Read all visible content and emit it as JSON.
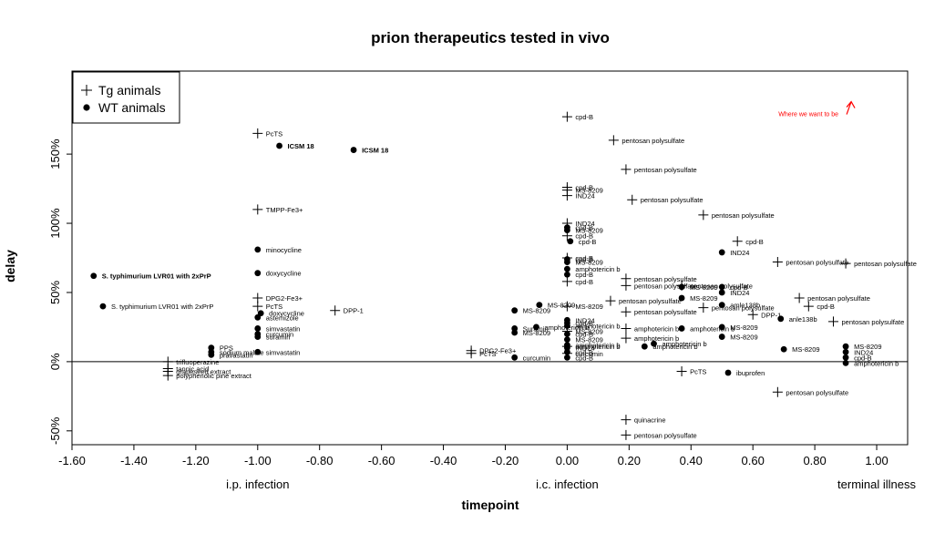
{
  "chart_data": {
    "type": "scatter",
    "title": "prion therapeutics tested in vivo",
    "xlabel": "timepoint",
    "ylabel": "delay",
    "xlim": [
      -1.6,
      1.1
    ],
    "ylim": [
      -0.6,
      2.1
    ],
    "x_ticks": [
      {
        "value": -1.6,
        "label": "-1.60"
      },
      {
        "value": -1.4,
        "label": "-1.40"
      },
      {
        "value": -1.2,
        "label": "-1.20"
      },
      {
        "value": -1.0,
        "label": "-1.00"
      },
      {
        "value": -0.8,
        "label": "-0.80"
      },
      {
        "value": -0.6,
        "label": "-0.60"
      },
      {
        "value": -0.4,
        "label": "-0.40"
      },
      {
        "value": -0.2,
        "label": "-0.20"
      },
      {
        "value": 0.0,
        "label": "0.00"
      },
      {
        "value": 0.2,
        "label": "0.20"
      },
      {
        "value": 0.4,
        "label": "0.40"
      },
      {
        "value": 0.6,
        "label": "0.60"
      },
      {
        "value": 0.8,
        "label": "0.80"
      },
      {
        "value": 1.0,
        "label": "1.00"
      }
    ],
    "y_ticks": [
      {
        "value": -0.5,
        "label": "-50%"
      },
      {
        "value": 0.0,
        "label": "0%"
      },
      {
        "value": 0.5,
        "label": "50%"
      },
      {
        "value": 1.0,
        "label": "100%"
      },
      {
        "value": 1.5,
        "label": "150%"
      }
    ],
    "x_annotations": [
      {
        "x": -1.0,
        "text": "i.p. infection"
      },
      {
        "x": 0.0,
        "text": "i.c. infection"
      },
      {
        "x": 1.0,
        "text": "terminal illness"
      }
    ],
    "reference_line_y": 0,
    "legend": {
      "position": "top-left",
      "entries": [
        {
          "symbol": "plus",
          "label": "Tg animals"
        },
        {
          "symbol": "dot",
          "label": "WT animals"
        }
      ]
    },
    "arrow_annotation": {
      "text": "Where we want to be",
      "color": "#ff0000",
      "x": 0.9,
      "y": 1.8
    },
    "series": [
      {
        "name": "Tg animals",
        "symbol": "plus",
        "points": [
          {
            "x": -1.0,
            "y": 1.65,
            "label": "PcTS"
          },
          {
            "x": -1.0,
            "y": 1.1,
            "label": "TMPP-Fe3+"
          },
          {
            "x": -1.0,
            "y": 0.46,
            "label": "DPG2-Fe3+"
          },
          {
            "x": -1.0,
            "y": 0.4,
            "label": "PcTS"
          },
          {
            "x": -0.75,
            "y": 0.37,
            "label": "DPP-1"
          },
          {
            "x": -1.29,
            "y": 0.0,
            "label": "trifluoperazine"
          },
          {
            "x": -1.29,
            "y": -0.05,
            "label": "tannic acid"
          },
          {
            "x": -1.29,
            "y": -0.07,
            "label": "grapeseed extract"
          },
          {
            "x": -1.29,
            "y": -0.1,
            "label": "polyphenolic pine extract"
          },
          {
            "x": -0.31,
            "y": 0.08,
            "label": "DPG2-Fe3+"
          },
          {
            "x": -0.31,
            "y": 0.06,
            "label": "PcTS"
          },
          {
            "x": 0.0,
            "y": 1.77,
            "label": "cpd-B"
          },
          {
            "x": 0.0,
            "y": 1.26,
            "label": "cpd-B"
          },
          {
            "x": 0.0,
            "y": 1.24,
            "label": "MS-8209"
          },
          {
            "x": 0.0,
            "y": 1.2,
            "label": "IND24"
          },
          {
            "x": 0.0,
            "y": 1.0,
            "label": "IND24"
          },
          {
            "x": 0.0,
            "y": 0.91,
            "label": "cpd-B"
          },
          {
            "x": 0.0,
            "y": 0.75,
            "label": "cpd-B"
          },
          {
            "x": 0.0,
            "y": 0.58,
            "label": "cpd-B"
          },
          {
            "x": 0.0,
            "y": 0.4,
            "label": "MS-8209"
          },
          {
            "x": 0.0,
            "y": 0.22,
            "label": "MS-8209"
          },
          {
            "x": 0.0,
            "y": 0.11,
            "label": "amphotericin b"
          },
          {
            "x": 0.0,
            "y": 0.06,
            "label": "curcumin"
          },
          {
            "x": 0.14,
            "y": 0.44,
            "label": "pentosan polysulfate"
          },
          {
            "x": 0.15,
            "y": 1.6,
            "label": "pentosan polysulfate"
          },
          {
            "x": 0.19,
            "y": 1.39,
            "label": "pentosan polysulfate"
          },
          {
            "x": 0.21,
            "y": 1.17,
            "label": "pentosan polysulfate"
          },
          {
            "x": 0.19,
            "y": 0.6,
            "label": "pentosan polysulfate"
          },
          {
            "x": 0.19,
            "y": 0.55,
            "label": "pentosan polysulfate"
          },
          {
            "x": 0.19,
            "y": 0.36,
            "label": "pentosan polysulfate"
          },
          {
            "x": 0.19,
            "y": 0.24,
            "label": "amphotericin b"
          },
          {
            "x": 0.19,
            "y": 0.17,
            "label": "amphotericin b"
          },
          {
            "x": 0.19,
            "y": -0.42,
            "label": "quinacrine"
          },
          {
            "x": 0.19,
            "y": -0.53,
            "label": "pentosan polysulfate"
          },
          {
            "x": 0.37,
            "y": 0.55,
            "label": "pentosan polysulfate"
          },
          {
            "x": 0.37,
            "y": -0.07,
            "label": "PcTS"
          },
          {
            "x": 0.44,
            "y": 1.06,
            "label": "pentosan polysulfate"
          },
          {
            "x": 0.44,
            "y": 0.39,
            "label": "pentosan polysulfate"
          },
          {
            "x": 0.55,
            "y": 0.87,
            "label": "cpd-B"
          },
          {
            "x": 0.6,
            "y": 0.34,
            "label": "DPP-1"
          },
          {
            "x": 0.68,
            "y": 0.72,
            "label": "pentosan polysulfate"
          },
          {
            "x": 0.68,
            "y": -0.22,
            "label": "pentosan polysulfate"
          },
          {
            "x": 0.75,
            "y": 0.46,
            "label": "pentosan polysulfate"
          },
          {
            "x": 0.78,
            "y": 0.4,
            "label": "cpd-B"
          },
          {
            "x": 0.86,
            "y": 0.29,
            "label": "pentosan polysulfate"
          },
          {
            "x": 0.9,
            "y": 0.71,
            "label": "pentosan polysulfate"
          }
        ]
      },
      {
        "name": "WT animals",
        "symbol": "dot",
        "points": [
          {
            "x": -0.93,
            "y": 1.56,
            "label": "ICSM 18",
            "bold": true
          },
          {
            "x": -0.69,
            "y": 1.53,
            "label": "ICSM 18",
            "bold": true
          },
          {
            "x": -1.0,
            "y": 0.81,
            "label": "minocycline"
          },
          {
            "x": -1.0,
            "y": 0.64,
            "label": "doxycycline"
          },
          {
            "x": -1.53,
            "y": 0.62,
            "label": "S. typhimurium LVR01 with 2xPrP",
            "bold": true
          },
          {
            "x": -1.5,
            "y": 0.4,
            "label": "S. typhimurium LVR01 with 2xPrP"
          },
          {
            "x": -0.99,
            "y": 0.35,
            "label": "doxycycline"
          },
          {
            "x": -1.0,
            "y": 0.32,
            "label": "astemizole"
          },
          {
            "x": -1.0,
            "y": 0.24,
            "label": "simvastatin"
          },
          {
            "x": -1.0,
            "y": 0.2,
            "label": "curcumin"
          },
          {
            "x": -1.0,
            "y": 0.18,
            "label": "suramin"
          },
          {
            "x": -1.15,
            "y": 0.1,
            "label": "PPS"
          },
          {
            "x": -1.15,
            "y": 0.07,
            "label": "sodium malate"
          },
          {
            "x": -1.15,
            "y": 0.05,
            "label": "pravastatin"
          },
          {
            "x": -1.0,
            "y": 0.07,
            "label": "simvastatin"
          },
          {
            "x": -0.17,
            "y": 0.37,
            "label": "MS-8209"
          },
          {
            "x": -0.17,
            "y": 0.24,
            "label": "Suramin"
          },
          {
            "x": -0.17,
            "y": 0.21,
            "label": "MS-8209"
          },
          {
            "x": -0.09,
            "y": 0.41,
            "label": "MS-8209"
          },
          {
            "x": -0.1,
            "y": 0.25,
            "label": "amphotericin b"
          },
          {
            "x": -0.17,
            "y": 0.03,
            "label": "curcumin"
          },
          {
            "x": 0.0,
            "y": 0.97,
            "label": "cpd-B"
          },
          {
            "x": 0.0,
            "y": 0.95,
            "label": "MS-8209"
          },
          {
            "x": 0.01,
            "y": 0.87,
            "label": "cpd-B"
          },
          {
            "x": 0.0,
            "y": 0.74,
            "label": "cpd-B"
          },
          {
            "x": 0.0,
            "y": 0.72,
            "label": "MS-8209"
          },
          {
            "x": 0.0,
            "y": 0.67,
            "label": "amphotericin b"
          },
          {
            "x": 0.0,
            "y": 0.63,
            "label": "cpd-B"
          },
          {
            "x": 0.0,
            "y": 0.3,
            "label": "IND24"
          },
          {
            "x": 0.0,
            "y": 0.28,
            "label": "cpd-B"
          },
          {
            "x": 0.0,
            "y": 0.26,
            "label": "amphotericin b"
          },
          {
            "x": 0.0,
            "y": 0.2,
            "label": "cpd-B"
          },
          {
            "x": 0.0,
            "y": 0.16,
            "label": "MS-8209"
          },
          {
            "x": 0.0,
            "y": 0.12,
            "label": "amphotericin b"
          },
          {
            "x": 0.0,
            "y": 0.1,
            "label": "IND24"
          },
          {
            "x": 0.0,
            "y": 0.07,
            "label": "cpd-B"
          },
          {
            "x": 0.0,
            "y": 0.03,
            "label": "cpd-B"
          },
          {
            "x": 0.25,
            "y": 0.11,
            "label": "amphotericin b"
          },
          {
            "x": 0.28,
            "y": 0.13,
            "label": "amphotericin b"
          },
          {
            "x": 0.37,
            "y": 0.54,
            "label": "MS-8209"
          },
          {
            "x": 0.37,
            "y": 0.46,
            "label": "MS-8209"
          },
          {
            "x": 0.37,
            "y": 0.24,
            "label": "amphotericin b"
          },
          {
            "x": 0.5,
            "y": 0.79,
            "label": "IND24"
          },
          {
            "x": 0.5,
            "y": 0.54,
            "label": "cpd-B"
          },
          {
            "x": 0.5,
            "y": 0.5,
            "label": "IND24"
          },
          {
            "x": 0.5,
            "y": 0.41,
            "label": "amle138b"
          },
          {
            "x": 0.5,
            "y": 0.25,
            "label": "MS-8209"
          },
          {
            "x": 0.5,
            "y": 0.18,
            "label": "MS-8209"
          },
          {
            "x": 0.52,
            "y": -0.08,
            "label": "ibuprofen"
          },
          {
            "x": 0.69,
            "y": 0.31,
            "label": "anle138b"
          },
          {
            "x": 0.7,
            "y": 0.09,
            "label": "MS-8209"
          },
          {
            "x": 0.9,
            "y": 0.11,
            "label": "MS-8209"
          },
          {
            "x": 0.9,
            "y": 0.07,
            "label": "IND24"
          },
          {
            "x": 0.9,
            "y": 0.03,
            "label": "cpd-B"
          },
          {
            "x": 0.9,
            "y": -0.01,
            "label": "amphotericin b"
          }
        ]
      }
    ]
  }
}
